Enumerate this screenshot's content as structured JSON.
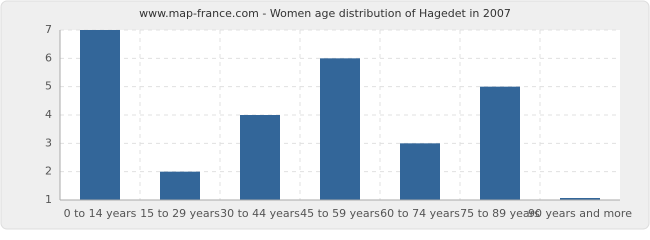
{
  "chart_data": {
    "type": "bar",
    "title": "www.map-france.com - Women age distribution of Hagedet in 2007",
    "categories": [
      "0 to 14 years",
      "15 to 29 years",
      "30 to 44 years",
      "45 to 59 years",
      "60 to 74 years",
      "75 to 89 years",
      "90 years and more"
    ],
    "values": [
      7,
      2,
      4,
      6,
      3,
      5,
      1
    ],
    "color": "#336699",
    "ylim": [
      1,
      7
    ],
    "yticks": [
      1,
      2,
      3,
      4,
      5,
      6,
      7
    ],
    "grid": true
  }
}
